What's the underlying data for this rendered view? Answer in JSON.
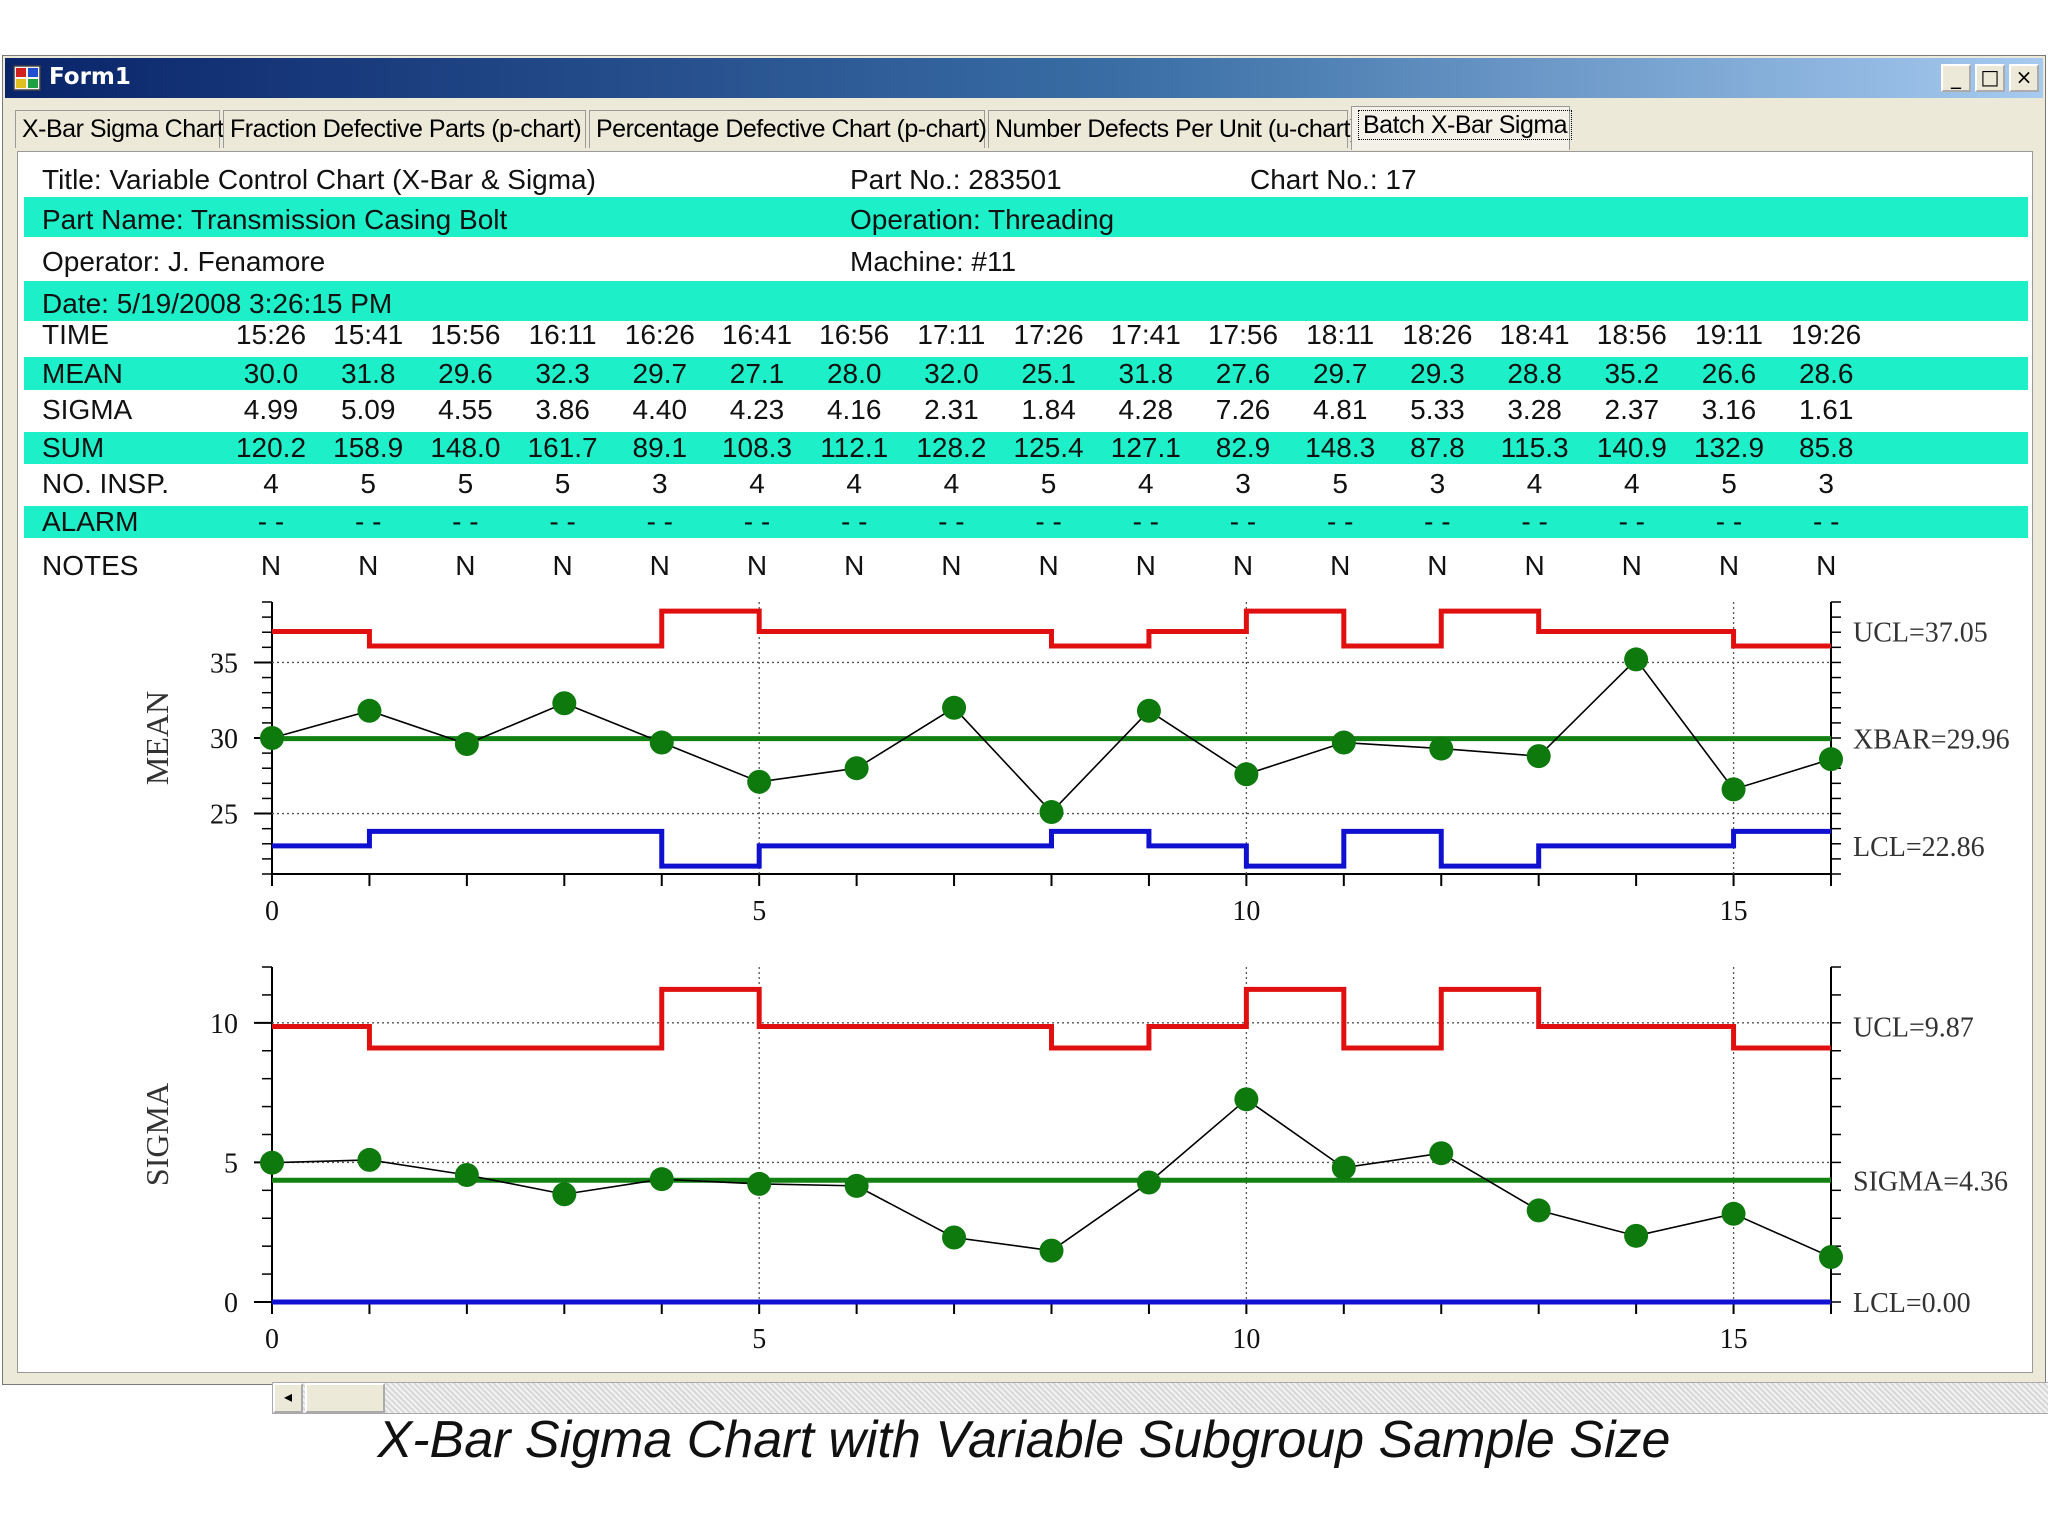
{
  "window": {
    "title": "Form1",
    "controls": [
      "_",
      "□",
      "×"
    ]
  },
  "tabs": [
    {
      "label": "X-Bar Sigma Chart",
      "active": false
    },
    {
      "label": "Fraction Defective Parts (p-chart)",
      "active": false
    },
    {
      "label": "Percentage Defective Chart (p-chart)",
      "active": false
    },
    {
      "label": "Number Defects Per Unit (u-chart)",
      "active": false
    },
    {
      "label": "Batch X-Bar Sigma",
      "active": true
    }
  ],
  "header": {
    "title": "Title: Variable Control Chart (X-Bar & Sigma)",
    "part_no": "Part No.: 283501",
    "chart_no": "Chart No.: 17",
    "part_name": "Part Name: Transmission Casing Bolt",
    "operation": "Operation: Threading",
    "operator": "Operator: J. Fenamore",
    "machine": "Machine: #11",
    "date": "Date: 5/19/2008 3:26:15 PM"
  },
  "table": {
    "rows": [
      {
        "label": "TIME",
        "values": [
          "15:26",
          "15:41",
          "15:56",
          "16:11",
          "16:26",
          "16:41",
          "16:56",
          "17:11",
          "17:26",
          "17:41",
          "17:56",
          "18:11",
          "18:26",
          "18:41",
          "18:56",
          "19:11",
          "19:26"
        ]
      },
      {
        "label": "MEAN",
        "values": [
          "30.0",
          "31.8",
          "29.6",
          "32.3",
          "29.7",
          "27.1",
          "28.0",
          "32.0",
          "25.1",
          "31.8",
          "27.6",
          "29.7",
          "29.3",
          "28.8",
          "35.2",
          "26.6",
          "28.6"
        ]
      },
      {
        "label": "SIGMA",
        "values": [
          "4.99",
          "5.09",
          "4.55",
          "3.86",
          "4.40",
          "4.23",
          "4.16",
          "2.31",
          "1.84",
          "4.28",
          "7.26",
          "4.81",
          "5.33",
          "3.28",
          "2.37",
          "3.16",
          "1.61"
        ]
      },
      {
        "label": "SUM",
        "values": [
          "120.2",
          "158.9",
          "148.0",
          "161.7",
          "89.1",
          "108.3",
          "112.1",
          "128.2",
          "125.4",
          "127.1",
          "82.9",
          "148.3",
          "87.8",
          "115.3",
          "140.9",
          "132.9",
          "85.8"
        ]
      },
      {
        "label": "NO. INSP.",
        "values": [
          "4",
          "5",
          "5",
          "5",
          "3",
          "4",
          "4",
          "4",
          "5",
          "4",
          "3",
          "5",
          "3",
          "4",
          "4",
          "5",
          "3"
        ]
      },
      {
        "label": "ALARM",
        "values": [
          "- -",
          "- -",
          "- -",
          "- -",
          "- -",
          "- -",
          "- -",
          "- -",
          "- -",
          "- -",
          "- -",
          "- -",
          "- -",
          "- -",
          "- -",
          "- -",
          "- -"
        ]
      },
      {
        "label": "NOTES",
        "values": [
          "N",
          "N",
          "N",
          "N",
          "N",
          "N",
          "N",
          "N",
          "N",
          "N",
          "N",
          "N",
          "N",
          "N",
          "N",
          "N",
          "N"
        ]
      }
    ]
  },
  "colors": {
    "band": "#1df0c8",
    "ucl": "#e01010",
    "lcl": "#1010d0",
    "center": "#128012",
    "points": "#0e7a0e"
  },
  "chart_data": [
    {
      "type": "line",
      "ylabel": "MEAN",
      "x": [
        0,
        1,
        2,
        3,
        4,
        5,
        6,
        7,
        8,
        9,
        10,
        11,
        12,
        13,
        14,
        15,
        16
      ],
      "values": [
        30.0,
        31.8,
        29.6,
        32.3,
        29.7,
        27.1,
        28.0,
        32.0,
        25.1,
        31.8,
        27.6,
        29.7,
        29.3,
        28.8,
        35.2,
        26.6,
        28.6
      ],
      "n": [
        4,
        5,
        5,
        5,
        3,
        4,
        4,
        4,
        5,
        4,
        3,
        5,
        3,
        4,
        4,
        5,
        3
      ],
      "ucl_by_n": {
        "3": 38.4,
        "4": 37.05,
        "5": 36.09
      },
      "lcl_by_n": {
        "3": 21.52,
        "4": 22.86,
        "5": 23.82
      },
      "center": 29.96,
      "ylim": [
        21,
        39
      ],
      "xlim": [
        0,
        16
      ],
      "yticks": [
        25,
        30,
        35
      ],
      "xticks": [
        0,
        5,
        10,
        15
      ],
      "labels": {
        "ucl": "UCL=37.05",
        "center": "XBAR=29.96",
        "lcl": "LCL=22.86"
      }
    },
    {
      "type": "line",
      "ylabel": "SIGMA",
      "x": [
        0,
        1,
        2,
        3,
        4,
        5,
        6,
        7,
        8,
        9,
        10,
        11,
        12,
        13,
        14,
        15,
        16
      ],
      "values": [
        4.99,
        5.09,
        4.55,
        3.86,
        4.4,
        4.23,
        4.16,
        2.31,
        1.84,
        4.28,
        7.26,
        4.81,
        5.33,
        3.28,
        2.37,
        3.16,
        1.61
      ],
      "n": [
        4,
        5,
        5,
        5,
        3,
        4,
        4,
        4,
        5,
        4,
        3,
        5,
        3,
        4,
        4,
        5,
        3
      ],
      "ucl_by_n": {
        "3": 11.2,
        "4": 9.87,
        "5": 9.1
      },
      "lcl_by_n": {
        "3": 0,
        "4": 0,
        "5": 0
      },
      "center": 4.36,
      "ylim": [
        0,
        12
      ],
      "xlim": [
        0,
        16
      ],
      "yticks": [
        0,
        5,
        10
      ],
      "xticks": [
        0,
        5,
        10,
        15
      ],
      "labels": {
        "ucl": "UCL=9.87",
        "center": "SIGMA=4.36",
        "lcl": "LCL=0.00"
      }
    }
  ],
  "caption": "X-Bar Sigma Chart with Variable Subgroup Sample Size"
}
